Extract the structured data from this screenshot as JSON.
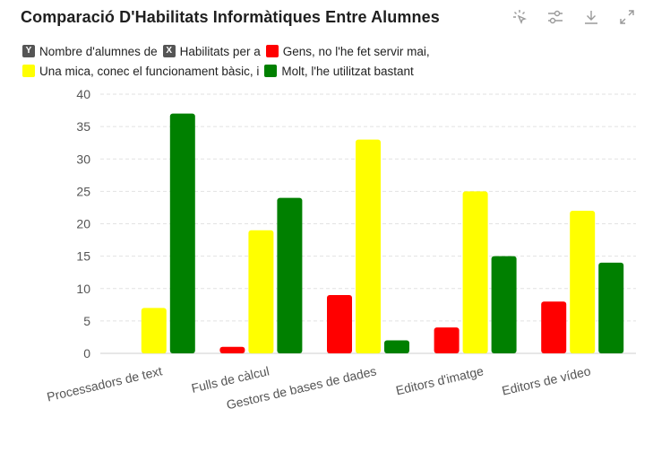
{
  "header": {
    "title": "Comparació D'Habilitats Informàtiques Entre Alumnes",
    "tools": [
      {
        "name": "select-data-icon"
      },
      {
        "name": "adjust-icon"
      },
      {
        "name": "download-icon"
      },
      {
        "name": "expand-icon"
      }
    ]
  },
  "legend": {
    "items": [
      {
        "label": "Nombre d'alumnes de",
        "color": "#555555",
        "hidden": true,
        "marker": "Y"
      },
      {
        "label": "Habilitats per a",
        "color": "#555555",
        "hidden": true,
        "marker": "X"
      },
      {
        "label": "Gens, no l'he fet servir mai,",
        "color": "#ff0000",
        "hidden": false
      },
      {
        "label": "Una mica, conec el funcionament bàsic, i",
        "color": "#ffff00",
        "hidden": false
      },
      {
        "label": "Molt, l'he utilitzat bastant",
        "color": "#008000",
        "hidden": false
      }
    ]
  },
  "chart_data": {
    "type": "bar",
    "title": "Comparació D'Habilitats Informàtiques Entre Alumnes",
    "categories": [
      "Processadors de text",
      "Fulls de càlcul",
      "Gestors de bases de dades",
      "Editors d'imatge",
      "Editors de vídeo"
    ],
    "series": [
      {
        "name": "Gens, no l'he fet servir mai,",
        "color": "#ff0000",
        "values": [
          0,
          1,
          9,
          4,
          8
        ]
      },
      {
        "name": "Una mica, conec el funcionament bàsic, i",
        "color": "#ffff00",
        "values": [
          7,
          19,
          33,
          25,
          22
        ]
      },
      {
        "name": "Molt, l'he utilitzat bastant",
        "color": "#008000",
        "values": [
          37,
          24,
          2,
          15,
          14
        ]
      }
    ],
    "ylim": [
      0,
      40
    ],
    "yticks": [
      0,
      5,
      10,
      15,
      20,
      25,
      30,
      35,
      40
    ],
    "grid": true,
    "legend_position": "top-left"
  }
}
